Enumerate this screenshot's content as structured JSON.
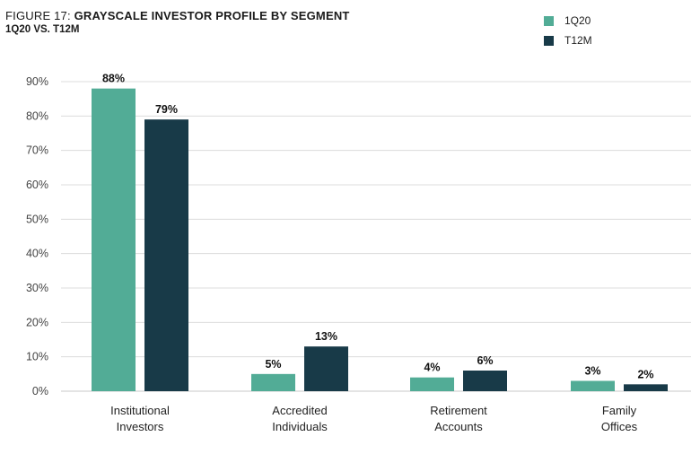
{
  "header": {
    "figure_prefix": "FIGURE 17: ",
    "title": "GRAYSCALE INVESTOR PROFILE BY SEGMENT",
    "subtitle": "1Q20 VS. T12M"
  },
  "colors": {
    "series_1": "#52ac96",
    "series_2": "#183a48",
    "grid": "#dcdcdc",
    "axis_text": "#444444",
    "value_text": "#111111"
  },
  "chart_data": {
    "type": "bar",
    "title": "GRAYSCALE INVESTOR PROFILE BY SEGMENT",
    "subtitle": "1Q20 VS. T12M",
    "categories": [
      "Institutional Investors",
      "Accredited Individuals",
      "Retirement Accounts",
      "Family Offices"
    ],
    "category_lines": [
      [
        "Institutional",
        "Investors"
      ],
      [
        "Accredited",
        "Individuals"
      ],
      [
        "Retirement",
        "Accounts"
      ],
      [
        "Family",
        "Offices"
      ]
    ],
    "series": [
      {
        "name": "1Q20",
        "values": [
          88,
          5,
          4,
          3
        ],
        "labels": [
          "88%",
          "5%",
          "4%",
          "3%"
        ]
      },
      {
        "name": "T12M",
        "values": [
          79,
          13,
          6,
          2
        ],
        "labels": [
          "79%",
          "13%",
          "6%",
          "2%"
        ]
      }
    ],
    "yticks": [
      0,
      10,
      20,
      30,
      40,
      50,
      60,
      70,
      80,
      90
    ],
    "ytick_labels": [
      "0%",
      "10%",
      "20%",
      "30%",
      "40%",
      "50%",
      "60%",
      "70%",
      "80%",
      "90%"
    ],
    "ylim": [
      0,
      90
    ],
    "grid": true,
    "legend_position": "top-right"
  }
}
